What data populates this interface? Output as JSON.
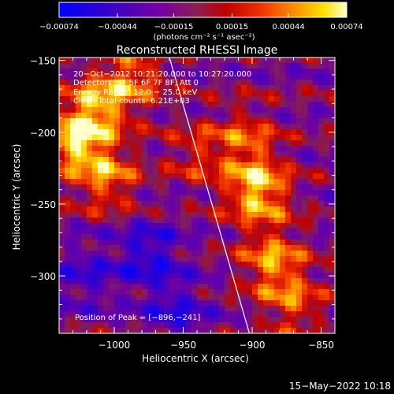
{
  "chart_data": {
    "type": "heatmap",
    "title": "Reconstructed RHESSI Image",
    "xlabel": "Heliocentric X (arcsec)",
    "ylabel": "Heliocentric Y (arcsec)",
    "xlim": [
      -1040,
      -840
    ],
    "ylim": [
      -340,
      -148
    ],
    "x_ticks": [
      -1000,
      -950,
      -900,
      -850
    ],
    "x_tick_labels": [
      "−1000",
      "−950",
      "−900",
      "−850"
    ],
    "y_ticks": [
      -150,
      -200,
      -250,
      -300
    ],
    "y_tick_labels": [
      "−150",
      "−200",
      "−250",
      "−300"
    ],
    "colorbar": {
      "min": -0.00074,
      "max": 0.00074,
      "ticks": [
        -0.00074,
        -0.00044,
        -0.00015,
        0.00015,
        0.00044,
        0.00074
      ],
      "tick_labels": [
        "−0.00074",
        "−0.00044",
        "−0.00015",
        "0.00015",
        "0.00044",
        "0.00074"
      ],
      "units_label": "(photons cm⁻² s⁻¹ asec⁻²)"
    },
    "info_lines": [
      "20−Oct−2012 10:21:20.000 to 10:27:20.000",
      "Detectors: 3F 5F 6F 7F 8F, Att 0",
      "Energy Range: 12.0 − 25.0 keV",
      "Clean     Total counts: 6.21E+03"
    ],
    "peak_label": "Position of Peak = [−896,−241]",
    "peak": [
      -896,
      -241
    ],
    "limb_line": [
      [
        -960,
        -148
      ],
      [
        -902,
        -340
      ]
    ],
    "sources": [
      {
        "x": -1028,
        "y": -205,
        "value": 0.00074
      },
      {
        "x": -1010,
        "y": -180,
        "value": 0.00055
      },
      {
        "x": -985,
        "y": -160,
        "value": 0.00045
      },
      {
        "x": -1005,
        "y": -232,
        "value": 0.0005
      },
      {
        "x": -896,
        "y": -241,
        "value": 0.00074
      },
      {
        "x": -885,
        "y": -290,
        "value": 0.00055
      },
      {
        "x": -905,
        "y": -205,
        "value": 0.0004
      },
      {
        "x": -870,
        "y": -320,
        "value": 0.0004
      },
      {
        "x": -940,
        "y": -215,
        "value": 0.0003
      },
      {
        "x": -975,
        "y": -285,
        "value": -0.00044
      },
      {
        "x": -955,
        "y": -325,
        "value": -0.00035
      },
      {
        "x": -1020,
        "y": -300,
        "value": -0.0003
      }
    ]
  },
  "footer": {
    "timestamp": "15−May−2022 10:18"
  }
}
